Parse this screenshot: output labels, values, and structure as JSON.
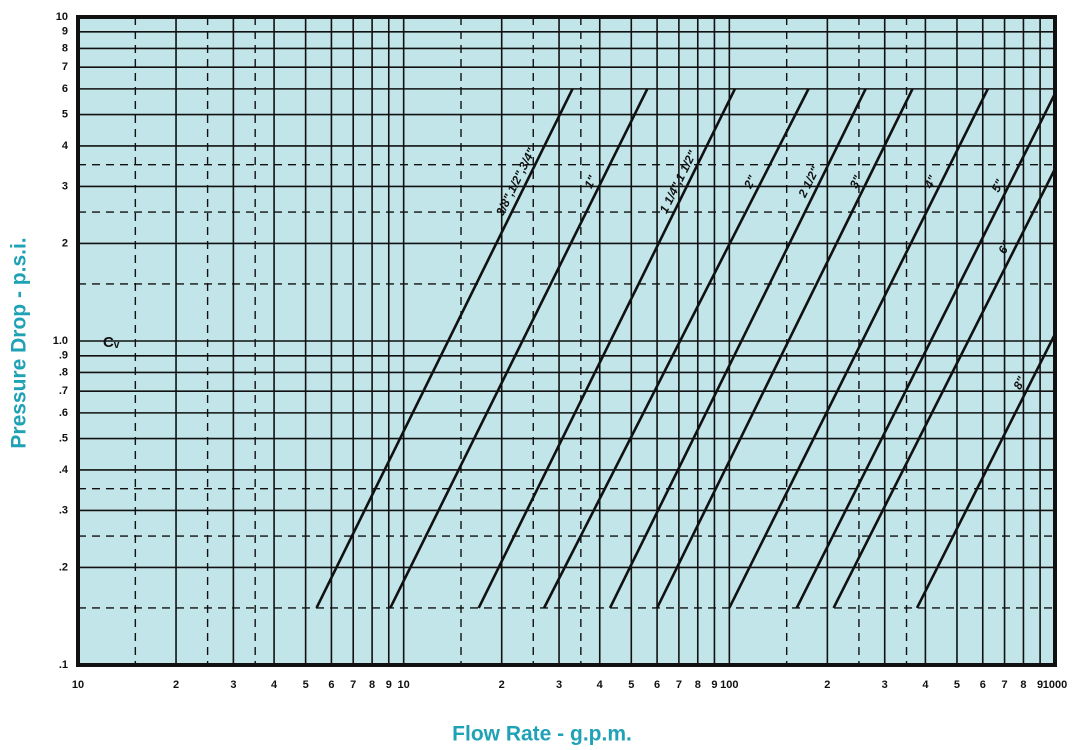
{
  "chart_data": {
    "type": "line",
    "x_label": "Flow Rate - g.p.m.",
    "y_label": "Pressure Drop - p.s.i.",
    "annotation": "Cᵥ",
    "x_log": true,
    "y_log": true,
    "grid": true,
    "background": "#c2e5ea",
    "xlim": [
      1,
      1000
    ],
    "ylim": [
      0.1,
      10
    ],
    "xticks": [
      {
        "value": 1,
        "label": "10"
      },
      2,
      3,
      4,
      5,
      6,
      7,
      8,
      9,
      10,
      {
        "value": 20,
        "label": "2"
      },
      {
        "value": 30,
        "label": "3"
      },
      {
        "value": 40,
        "label": "4"
      },
      {
        "value": 50,
        "label": "5"
      },
      {
        "value": 60,
        "label": "6"
      },
      {
        "value": 70,
        "label": "7"
      },
      {
        "value": 80,
        "label": "8"
      },
      {
        "value": 90,
        "label": "9"
      },
      100,
      {
        "value": 200,
        "label": "2"
      },
      {
        "value": 300,
        "label": "3"
      },
      {
        "value": 400,
        "label": "4"
      },
      {
        "value": 500,
        "label": "5"
      },
      {
        "value": 600,
        "label": "6"
      },
      {
        "value": 700,
        "label": "7"
      },
      {
        "value": 800,
        "label": "8"
      },
      {
        "value": 900,
        "label": "9"
      },
      1000
    ],
    "yticks": [
      {
        "value": 0.1,
        "label": ".1"
      },
      {
        "value": 0.2,
        "label": ".2"
      },
      {
        "value": 0.3,
        "label": ".3"
      },
      {
        "value": 0.4,
        "label": ".4"
      },
      {
        "value": 0.5,
        "label": ".5"
      },
      {
        "value": 0.6,
        "label": ".6"
      },
      {
        "value": 0.7,
        "label": ".7"
      },
      {
        "value": 0.8,
        "label": ".8"
      },
      {
        "value": 0.9,
        "label": ".9"
      },
      {
        "value": 1,
        "label": "1.0"
      },
      2,
      3,
      4,
      5,
      6,
      7,
      8,
      9,
      10
    ],
    "x_minor_grid": [
      1.5,
      2.5,
      3.5,
      15,
      25,
      35,
      150,
      250,
      350
    ],
    "y_minor_grid": [
      0.15,
      0.25,
      0.35,
      1.5,
      2.5,
      3.5
    ],
    "series": [
      {
        "name": "3/8\",1/2\",3/4\"",
        "color": "#111111",
        "x": [
          5.4,
          33
        ],
        "values": [
          0.15,
          6
        ]
      },
      {
        "name": "1\"",
        "color": "#111111",
        "x": [
          9.1,
          56
        ],
        "values": [
          0.15,
          6
        ]
      },
      {
        "name": "1 1/4\",1 1/2\"",
        "color": "#111111",
        "x": [
          17,
          104
        ],
        "values": [
          0.15,
          6
        ]
      },
      {
        "name": "2\"",
        "color": "#111111",
        "x": [
          27,
          175
        ],
        "values": [
          0.15,
          6
        ]
      },
      {
        "name": "2 1/2\"",
        "color": "#111111",
        "x": [
          43,
          262
        ],
        "values": [
          0.15,
          6
        ]
      },
      {
        "name": "3\"",
        "color": "#111111",
        "x": [
          60,
          365
        ],
        "values": [
          0.15,
          6
        ]
      },
      {
        "name": "4\"",
        "color": "#111111",
        "x": [
          100,
          622
        ],
        "values": [
          0.15,
          6
        ]
      },
      {
        "name": "5\"",
        "color": "#111111",
        "x": [
          161,
          1000
        ],
        "values": [
          0.15,
          5.8
        ]
      },
      {
        "name": "6\"",
        "color": "#111111",
        "x": [
          209,
          1000
        ],
        "values": [
          0.15,
          3.4
        ]
      },
      {
        "name": "8\"",
        "color": "#111111",
        "x": [
          377,
          1000
        ],
        "values": [
          0.15,
          1.05
        ]
      }
    ]
  }
}
